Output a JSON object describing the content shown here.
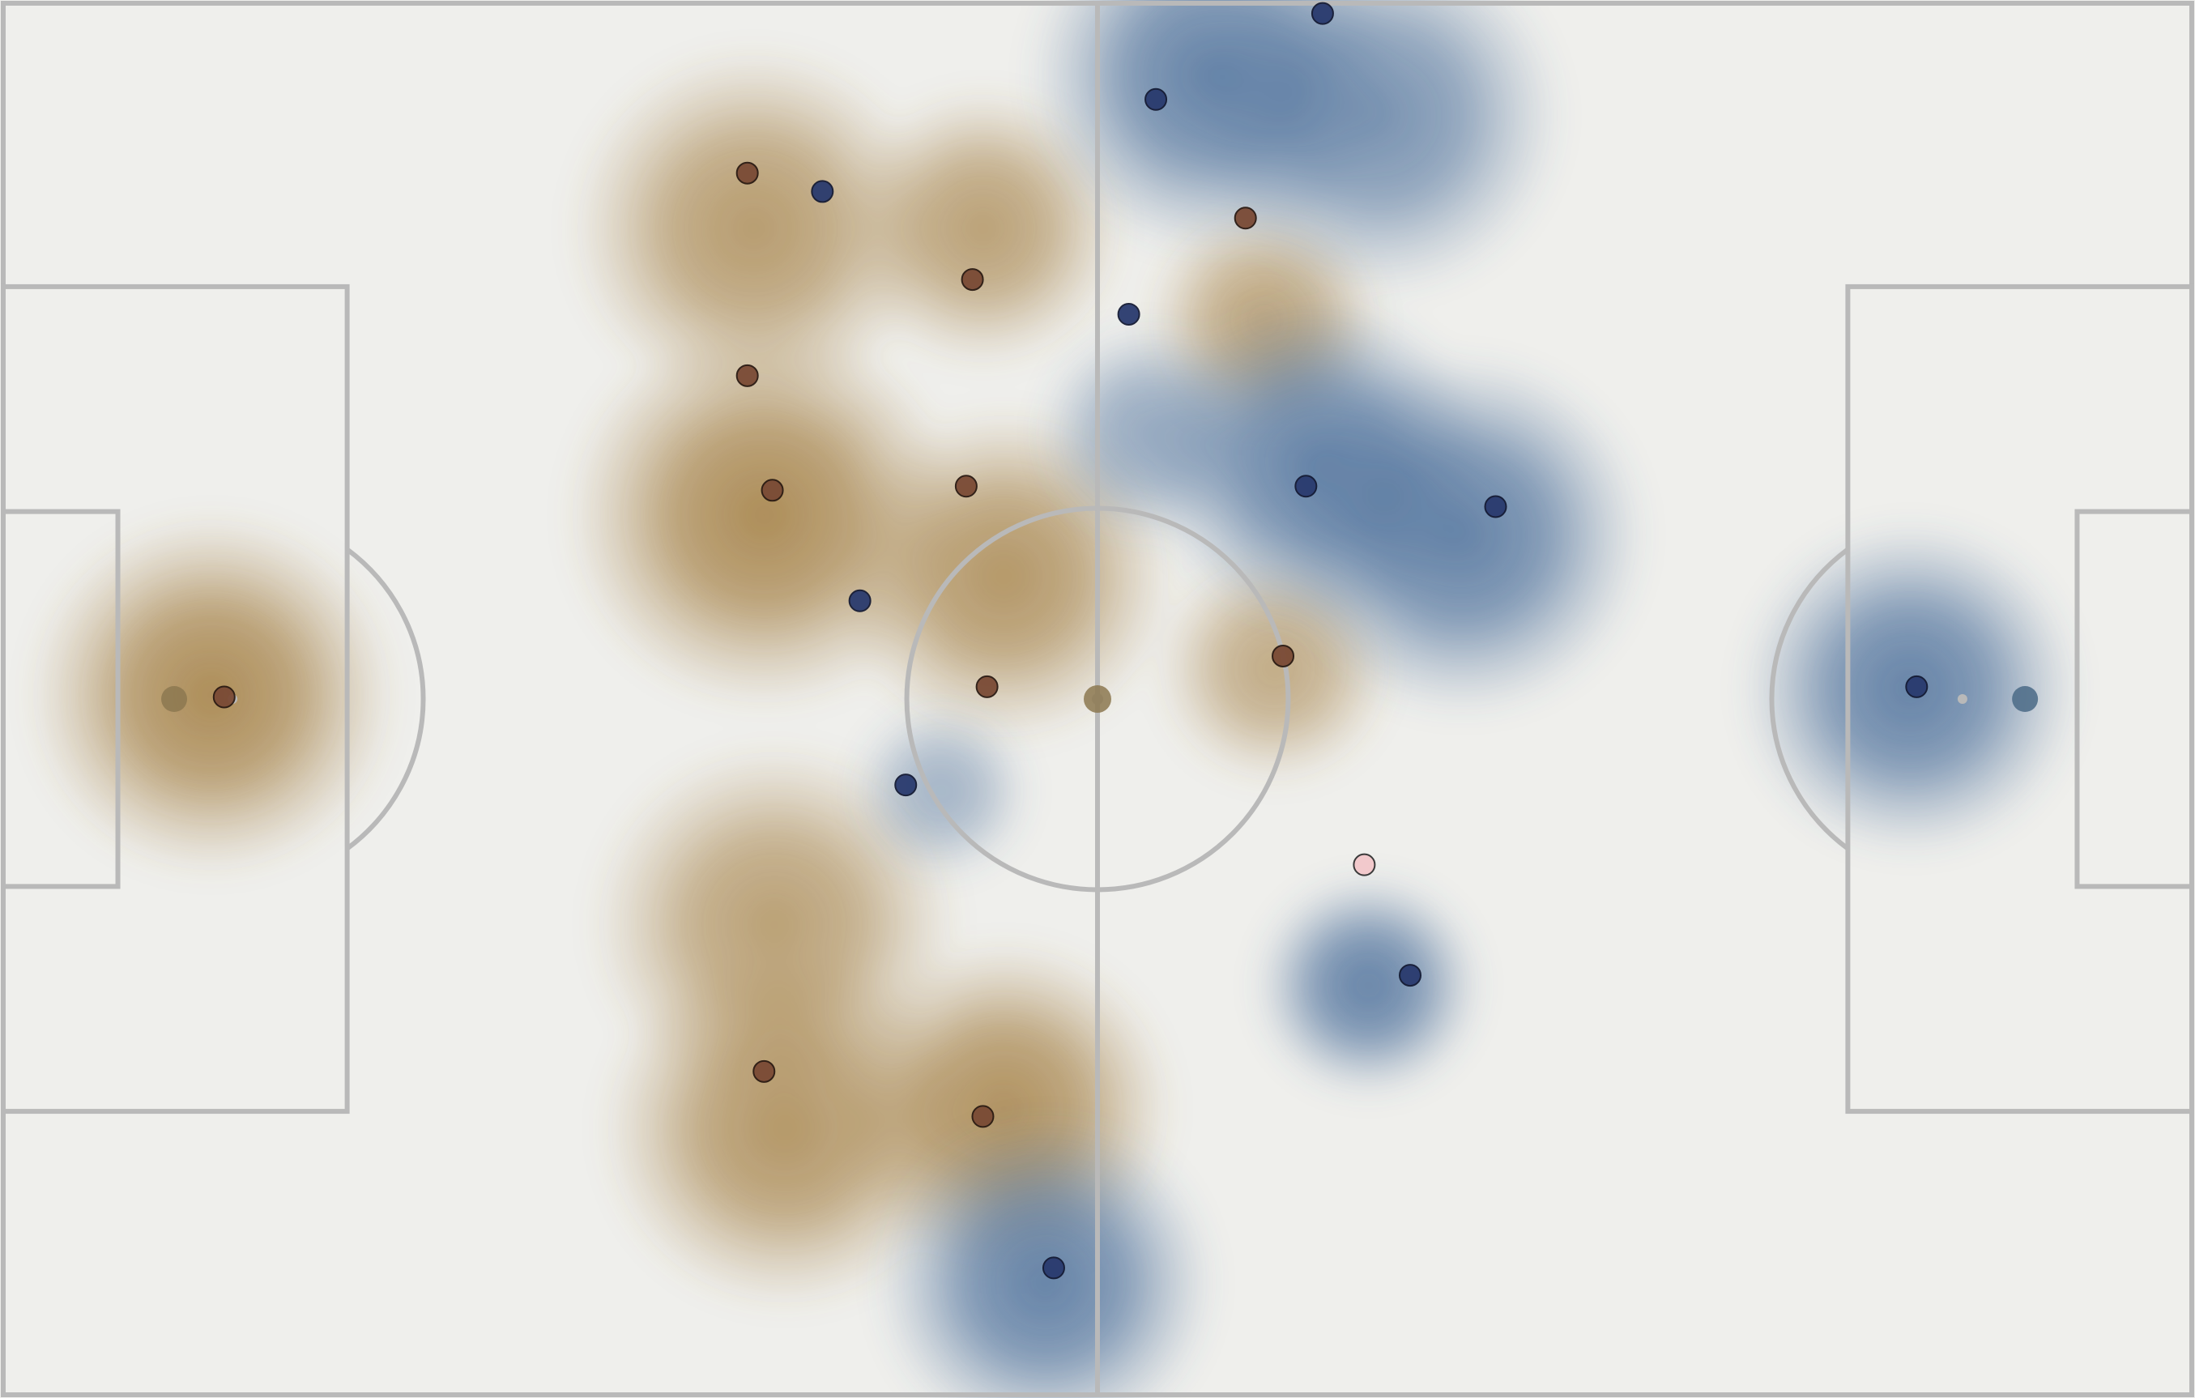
{
  "pitch": {
    "length": 105,
    "width": 68,
    "surface_color": "#efefec",
    "line_color": "#b9b9b9"
  },
  "teams": {
    "home": {
      "color": "#7a4a35",
      "heat_color": "#a07a3c",
      "side": "left"
    },
    "away": {
      "color": "#2a3a6e",
      "heat_color": "#4a6e9a",
      "side": "right"
    }
  },
  "ball": {
    "x": 52.5,
    "y": 34,
    "color": "#8c7850"
  },
  "home_players": [
    {
      "x": 10.6,
      "y": 33.9
    },
    {
      "x": 36.5,
      "y": 52.2
    },
    {
      "x": 36.9,
      "y": 23.8
    },
    {
      "x": 35.7,
      "y": 18.2
    },
    {
      "x": 35.7,
      "y": 8.3
    },
    {
      "x": 46.5,
      "y": 13.5
    },
    {
      "x": 47.2,
      "y": 33.4
    },
    {
      "x": 46.2,
      "y": 23.6
    },
    {
      "x": 47.0,
      "y": 54.4
    },
    {
      "x": 61.4,
      "y": 31.9
    },
    {
      "x": 59.6,
      "y": 10.5
    }
  ],
  "away_players": [
    {
      "x": 91.8,
      "y": 33.4
    },
    {
      "x": 71.6,
      "y": 24.6
    },
    {
      "x": 62.5,
      "y": 23.6
    },
    {
      "x": 54.0,
      "y": 15.2
    },
    {
      "x": 55.3,
      "y": 4.7
    },
    {
      "x": 63.3,
      "y": 0.5
    },
    {
      "x": 67.5,
      "y": 47.5
    },
    {
      "x": 50.4,
      "y": 61.8
    },
    {
      "x": 41.1,
      "y": 29.2
    },
    {
      "x": 43.3,
      "y": 38.2
    },
    {
      "x": 39.3,
      "y": 9.2
    }
  ],
  "other_markers": [
    {
      "x": 65.3,
      "y": 42.1,
      "color": "#f2c9cc"
    }
  ],
  "home_heat": [
    {
      "x": 10.0,
      "y": 33.8,
      "s": 6.5,
      "w": 1.0
    },
    {
      "x": 36.0,
      "y": 11.0,
      "s": 6.5,
      "w": 0.85
    },
    {
      "x": 36.5,
      "y": 25.0,
      "s": 7.0,
      "w": 1.0
    },
    {
      "x": 37.0,
      "y": 45.0,
      "s": 6.5,
      "w": 0.8
    },
    {
      "x": 37.5,
      "y": 55.0,
      "s": 6.5,
      "w": 0.9
    },
    {
      "x": 47.0,
      "y": 11.0,
      "s": 5.0,
      "w": 0.8
    },
    {
      "x": 48.0,
      "y": 28.0,
      "s": 6.0,
      "w": 0.9
    },
    {
      "x": 48.0,
      "y": 54.0,
      "s": 6.0,
      "w": 0.95
    },
    {
      "x": 60.5,
      "y": 15.5,
      "s": 4.2,
      "w": 0.75
    },
    {
      "x": 61.0,
      "y": 32.5,
      "s": 4.2,
      "w": 0.7
    }
  ],
  "away_heat": [
    {
      "x": 58.0,
      "y": 3.5,
      "s": 6.5,
      "w": 1.0
    },
    {
      "x": 66.0,
      "y": 5.5,
      "s": 6.5,
      "w": 0.85
    },
    {
      "x": 63.0,
      "y": 22.5,
      "s": 6.0,
      "w": 1.0
    },
    {
      "x": 70.0,
      "y": 26.0,
      "s": 6.5,
      "w": 1.0
    },
    {
      "x": 55.0,
      "y": 21.0,
      "s": 4.0,
      "w": 0.65
    },
    {
      "x": 45.0,
      "y": 38.5,
      "s": 3.2,
      "w": 0.55
    },
    {
      "x": 91.5,
      "y": 33.5,
      "s": 6.0,
      "w": 1.0
    },
    {
      "x": 65.5,
      "y": 48.0,
      "s": 4.0,
      "w": 1.1
    },
    {
      "x": 50.0,
      "y": 62.5,
      "s": 6.0,
      "w": 1.0
    }
  ]
}
